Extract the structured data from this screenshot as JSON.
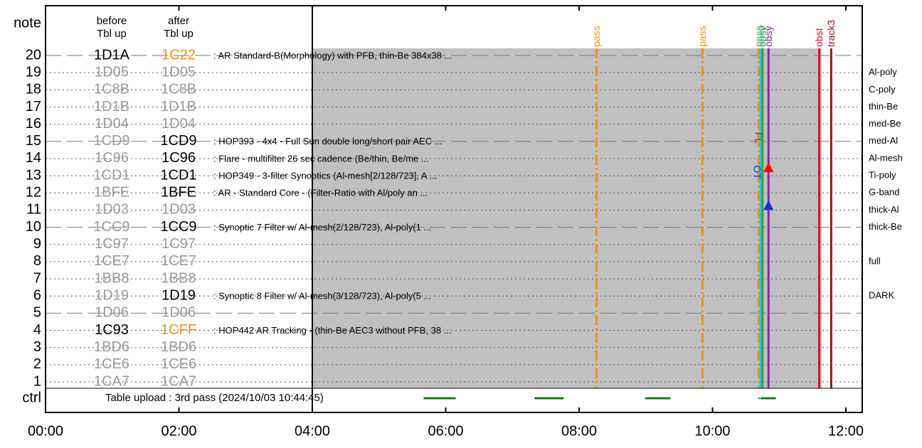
{
  "chart_data": {
    "type": "timeline",
    "header": {
      "note": "note",
      "before": [
        "before",
        "Tbl up"
      ],
      "after": [
        "after",
        "Tbl up"
      ],
      "ctrl": "ctrl"
    },
    "xlim": [
      0,
      12.25
    ],
    "xticks": [
      {
        "value": 0,
        "label": "00:00"
      },
      {
        "value": 2,
        "label": "02:00"
      },
      {
        "value": 4,
        "label": "04:00"
      },
      {
        "value": 6,
        "label": "06:00"
      },
      {
        "value": 8,
        "label": "08:00"
      },
      {
        "value": 10,
        "label": "10:00"
      },
      {
        "value": 12,
        "label": "12:00"
      }
    ],
    "rows": [
      {
        "row": 20,
        "before": "1D1A",
        "after": "1C22",
        "before_color": "#000",
        "after_color": "#f0901a",
        "desc": ": AR Standard-B(Morphology) with PFB, thin-Be 384x38 ..."
      },
      {
        "row": 19,
        "before": "1D05",
        "after": "1D05",
        "before_color": "#999",
        "after_color": "#999",
        "filter": "Al-poly"
      },
      {
        "row": 18,
        "before": "1C8B",
        "after": "1C8B",
        "before_color": "#999",
        "after_color": "#999",
        "filter": "C-poly"
      },
      {
        "row": 17,
        "before": "1D1B",
        "after": "1D1B",
        "before_color": "#999",
        "after_color": "#999",
        "filter": "thin-Be"
      },
      {
        "row": 16,
        "before": "1D04",
        "after": "1D04",
        "before_color": "#999",
        "after_color": "#999",
        "filter": "med-Be"
      },
      {
        "row": 15,
        "before": "1CD9",
        "after": "1CD9",
        "before_color": "#999",
        "after_color": "#000",
        "desc": ": HOP393 - 4x4 - Full Sun double long/short pair AEC ...",
        "filter": "med-Al"
      },
      {
        "row": 14,
        "before": "1C96",
        "after": "1C96",
        "before_color": "#999",
        "after_color": "#000",
        "desc": ": Flare - multifilter 26 sec cadence (Be/thin, Be/me ...",
        "filter": "Al-mesh"
      },
      {
        "row": 13,
        "before": "1CD1",
        "after": "1CD1",
        "before_color": "#999",
        "after_color": "#000",
        "desc": ": HOP349 - 3-filter Synoptics (Al-mesh[2/128/723], A ...",
        "filter": "Ti-poly"
      },
      {
        "row": 12,
        "before": "1BFE",
        "after": "1BFE",
        "before_color": "#999",
        "after_color": "#000",
        "desc": ": AR - Standard Core - (Filter-Ratio with Al/poly an ...",
        "filter": "G-band"
      },
      {
        "row": 11,
        "before": "1D03",
        "after": "1D03",
        "before_color": "#999",
        "after_color": "#999",
        "filter": "thick-Al"
      },
      {
        "row": 10,
        "before": "1CC9",
        "after": "1CC9",
        "before_color": "#999",
        "after_color": "#000",
        "desc": ": Synoptic 7 Filter w/ Al-mesh(2/128/723), Al-poly(1 ...",
        "filter": "thick-Be"
      },
      {
        "row": 9,
        "before": "1C97",
        "after": "1C97",
        "before_color": "#999",
        "after_color": "#999"
      },
      {
        "row": 8,
        "before": "1CE7",
        "after": "1CE7",
        "before_color": "#999",
        "after_color": "#999",
        "filter": "full"
      },
      {
        "row": 7,
        "before": "1BB8",
        "after": "1BB8",
        "before_color": "#999",
        "after_color": "#999"
      },
      {
        "row": 6,
        "before": "1D19",
        "after": "1D19",
        "before_color": "#999",
        "after_color": "#000",
        "desc": ": Synoptic 8 Filter w/ Al-mesh(3/128/723), Al-poly(5 ...",
        "filter": "DARK"
      },
      {
        "row": 5,
        "before": "1D06",
        "after": "1D06",
        "before_color": "#999",
        "after_color": "#999"
      },
      {
        "row": 4,
        "before": "1C93",
        "after": "1CFF",
        "before_color": "#000",
        "after_color": "#f0901a",
        "desc": ": HOP442 AR Tracking - (thin-Be AEC3 without PFB, 38 ..."
      },
      {
        "row": 3,
        "before": "1BD6",
        "after": "1BD6",
        "before_color": "#999",
        "after_color": "#999"
      },
      {
        "row": 2,
        "before": "1CE6",
        "after": "1CE6",
        "before_color": "#999",
        "after_color": "#999"
      },
      {
        "row": 1,
        "before": "1CA7",
        "after": "1CA7",
        "before_color": "#999",
        "after_color": "#999"
      }
    ],
    "shade": {
      "start": 4,
      "end": 11.64,
      "color": "#c0c0c0"
    },
    "events": [
      {
        "time": 8.26,
        "label": "pass",
        "color": "#f0901a",
        "dash": true
      },
      {
        "time": 9.85,
        "label": "pass",
        "color": "#f0901a",
        "dash": true
      },
      {
        "time": 10.69,
        "label": "pass",
        "color": "#f0901a",
        "dash": true
      },
      {
        "time": 10.72,
        "label": "obsp",
        "color": "#22c8e0"
      },
      {
        "time": 10.75,
        "label": "obsy",
        "color": "#3aa040"
      },
      {
        "time": 10.84,
        "label": "obsy",
        "color": "#8a2aa0"
      },
      {
        "time": 11.6,
        "label": "obst",
        "color": "#e0102a"
      },
      {
        "time": 11.78,
        "label": "track3",
        "color": "#8b1a1a"
      }
    ],
    "markers": [
      {
        "time": 10.84,
        "row": 13.5,
        "color": "#f00"
      },
      {
        "time": 10.84,
        "row": 11.3,
        "color": "#1030e0"
      }
    ],
    "annotations": [
      {
        "time": 10.68,
        "row": 15.2,
        "text": "FL",
        "color": "#e02020"
      },
      {
        "time": 10.66,
        "row": 13.2,
        "text": "OT",
        "color": "#1030e0"
      }
    ],
    "ctrl_text": "Table upload : 3rd pass (2024/10/03 10:44:45)",
    "ctrl_segments": [
      {
        "start": 5.67,
        "end": 6.15,
        "color": "#1a7a1a"
      },
      {
        "start": 7.33,
        "end": 7.77,
        "color": "#1a7a1a"
      },
      {
        "start": 8.99,
        "end": 9.37,
        "color": "#1a7a1a"
      },
      {
        "start": 10.69,
        "end": 10.95,
        "color": "#1a7a1a"
      },
      {
        "start": 10.7,
        "end": 10.73,
        "color": "#22e0f0"
      }
    ]
  }
}
